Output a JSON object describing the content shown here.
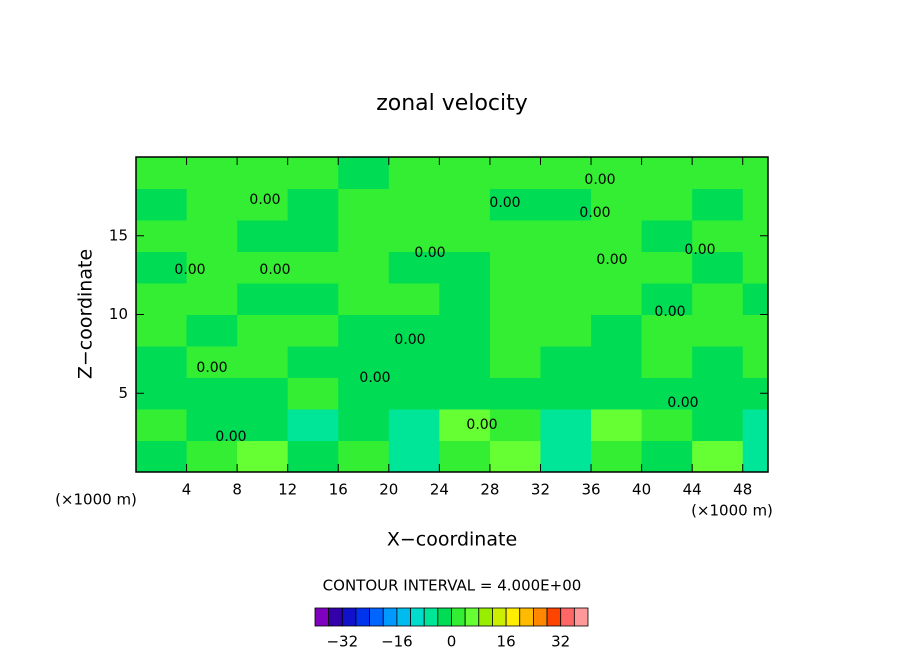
{
  "chart_data": {
    "type": "contour",
    "title": "zonal velocity",
    "x_label": "X−coordinate",
    "y_label": "Z−coordinate",
    "x_unit": "(×1000 m)",
    "y_unit": "(×1000 m)",
    "contour_interval": "CONTOUR INTERVAL = 4.000E+00",
    "contour_labels": [
      "0.00",
      "0.00",
      "0.00",
      "0.00",
      "0.00",
      "0.00",
      "0.00",
      "0.00",
      "0.00",
      "0.00",
      "0.00",
      "0.00",
      "0.00",
      "0.00",
      "0.00",
      "0.00"
    ],
    "xlim": [
      0,
      50
    ],
    "ylim": [
      0,
      20
    ],
    "xticks": [
      4,
      8,
      12,
      16,
      20,
      24,
      28,
      32,
      36,
      40,
      44,
      48
    ],
    "yticks": [
      5,
      10,
      15
    ],
    "field": {
      "x": [
        2,
        6,
        10,
        14,
        18,
        22,
        26,
        30,
        34,
        38,
        42,
        46,
        50
      ],
      "y": [
        1,
        3,
        5,
        7,
        9,
        11,
        13,
        15,
        17,
        19
      ],
      "z": [
        [
          -3,
          1,
          5,
          -1,
          3,
          -5,
          1,
          5,
          -5,
          1,
          -3,
          5,
          -5
        ],
        [
          3,
          -3,
          -1,
          -6,
          -1,
          -6,
          5,
          3,
          -6,
          5,
          3,
          -1,
          -6
        ],
        [
          -1,
          -1,
          -1,
          1,
          -1,
          -3,
          -1,
          -3,
          -1,
          -1,
          -1,
          -3,
          -1
        ],
        [
          -1,
          1,
          1,
          -1,
          -1,
          -1,
          -1,
          1,
          -1,
          -1,
          1,
          -1,
          1
        ],
        [
          1,
          -1,
          1,
          1,
          -1,
          -1,
          -1,
          1,
          1,
          -1,
          1,
          1,
          1
        ],
        [
          1,
          1,
          -1,
          -1,
          1,
          1,
          -1,
          1,
          1,
          1,
          -1,
          1,
          -1
        ],
        [
          -1,
          1,
          1,
          1,
          1,
          -1,
          -1,
          1,
          1,
          1,
          1,
          -1,
          1
        ],
        [
          1,
          1,
          -1,
          -1,
          1,
          1,
          1,
          1,
          1,
          1,
          -1,
          1,
          1
        ],
        [
          -1,
          1,
          1,
          -1,
          1,
          1,
          1,
          -1,
          -1,
          1,
          1,
          -1,
          1
        ],
        [
          1,
          1,
          1,
          1,
          -1,
          1,
          1,
          1,
          1,
          1,
          1,
          1,
          1
        ]
      ]
    },
    "colorbar": {
      "levels": [
        -40,
        -36,
        -32,
        -28,
        -24,
        -20,
        -16,
        -12,
        -8,
        -4,
        0,
        4,
        8,
        12,
        16,
        20,
        24,
        28,
        32,
        36,
        40
      ],
      "colors": [
        "#8000c0",
        "#3300aa",
        "#1111cc",
        "#0033ee",
        "#0066ff",
        "#0099ff",
        "#00bbee",
        "#00ddcc",
        "#00e699",
        "#00dd55",
        "#33ee33",
        "#66ff33",
        "#99ee00",
        "#ccee00",
        "#ffee00",
        "#ffbb00",
        "#ff8800",
        "#ff4400",
        "#ff6666",
        "#ff9999"
      ],
      "ticks": [
        {
          "value": -32,
          "label": "−32"
        },
        {
          "value": -16,
          "label": "−16"
        },
        0,
        16,
        32
      ]
    }
  }
}
